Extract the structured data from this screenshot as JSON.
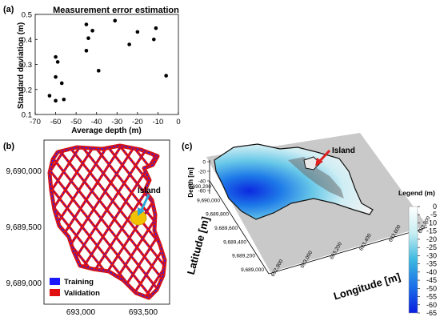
{
  "panels": {
    "a": {
      "tag": "(a)"
    },
    "b": {
      "tag": "(b)"
    },
    "c": {
      "tag": "(c)"
    }
  },
  "chart_data": [
    {
      "type": "scatter",
      "title": "Measurement error estimation",
      "xlabel": "Average depth (m)",
      "ylabel": "Standard deviation (m)",
      "xlim": [
        -70,
        0
      ],
      "ylim": [
        0.1,
        0.5
      ],
      "x_ticks": [
        -70,
        -60,
        -50,
        -40,
        -30,
        -20,
        -10,
        0
      ],
      "y_ticks": [
        0.1,
        0.2,
        0.3,
        0.4,
        0.5
      ],
      "points": [
        {
          "x": -63,
          "y": 0.175
        },
        {
          "x": -60,
          "y": 0.155
        },
        {
          "x": -56,
          "y": 0.16
        },
        {
          "x": -60,
          "y": 0.25
        },
        {
          "x": -57,
          "y": 0.225
        },
        {
          "x": -60,
          "y": 0.33
        },
        {
          "x": -59,
          "y": 0.31
        },
        {
          "x": -45,
          "y": 0.46
        },
        {
          "x": -44,
          "y": 0.405
        },
        {
          "x": -42,
          "y": 0.435
        },
        {
          "x": -45,
          "y": 0.355
        },
        {
          "x": -39,
          "y": 0.275
        },
        {
          "x": -31,
          "y": 0.475
        },
        {
          "x": -24,
          "y": 0.38
        },
        {
          "x": -20,
          "y": 0.43
        },
        {
          "x": -11,
          "y": 0.445
        },
        {
          "x": -12,
          "y": 0.4
        },
        {
          "x": -6,
          "y": 0.255
        }
      ],
      "marker_color": "#000000",
      "grid": false
    },
    {
      "type": "map",
      "x_ticks": [
        "693,000",
        "693,500"
      ],
      "y_ticks": [
        "9,690,000",
        "9,689,500",
        "9,689,000"
      ],
      "annotation": "Island",
      "legend": [
        {
          "name": "Training",
          "color": "#1a1aff"
        },
        {
          "name": "Validation",
          "color": "#e01010"
        }
      ],
      "island_color": "#f2c200",
      "arrow_color": "#2aa8d8"
    },
    {
      "type": "surface3d",
      "xlabel": "Longitude [m]",
      "ylabel": "Latitude [m]",
      "zlabel": "Depth [m]",
      "x_ticks": [
        "692,800",
        "693,000",
        "693,200",
        "693,400",
        "693,600",
        "693,800"
      ],
      "y_ticks": [
        "9,689,000",
        "9,689,200",
        "9,689,400",
        "9,689,600",
        "9,689,800",
        "9,690,000",
        "9,690,200"
      ],
      "z_ticks": [
        "0",
        "-20",
        "-40",
        "-60"
      ],
      "annotation": "Island",
      "arrow_color": "#e02020",
      "legend_title": "Legend (m)",
      "colorbar_ticks": [
        0,
        -5,
        -10,
        -15,
        -20,
        -25,
        -30,
        -35,
        -40,
        -45,
        -50,
        -55,
        -60,
        -65
      ],
      "colorbar_range": [
        -65,
        0
      ],
      "colorbar_colors": [
        "#ffffff",
        "#1030e0"
      ]
    }
  ]
}
